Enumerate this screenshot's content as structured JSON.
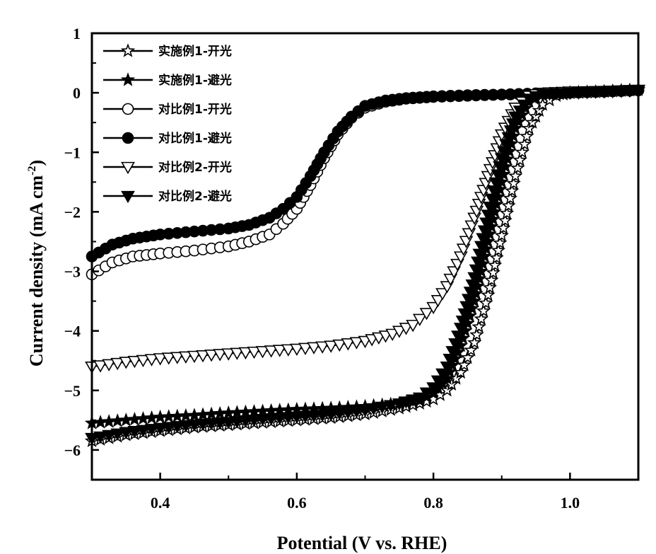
{
  "chart_data": {
    "type": "line",
    "title": "",
    "xlabel": "Potential (V vs. RHE)",
    "ylabel": "Current density (mA cm",
    "ylabel_sup": "-2",
    "ylabel_close": ")",
    "xlim": [
      0.3,
      1.1
    ],
    "ylim": [
      -6.5,
      1.0
    ],
    "xticks": [
      0.4,
      0.6,
      0.8,
      1.0
    ],
    "xtick_labels": [
      "0.4",
      "0.6",
      "0.8",
      "1.0"
    ],
    "yticks": [
      1,
      0,
      -1,
      -2,
      -3,
      -4,
      -5,
      -6
    ],
    "ytick_labels": [
      "1",
      "0",
      "−1",
      "−2",
      "−3",
      "−4",
      "−5",
      "−6"
    ],
    "grid": false,
    "legend_position": "top-left",
    "series": [
      {
        "name": "实施例1-开光",
        "marker": "star-open",
        "x": [
          0.3,
          0.35,
          0.4,
          0.45,
          0.5,
          0.55,
          0.6,
          0.65,
          0.7,
          0.75,
          0.78,
          0.8,
          0.82,
          0.84,
          0.86,
          0.88,
          0.9,
          0.92,
          0.94,
          0.96,
          0.98,
          1.0,
          1.05,
          1.1
        ],
        "y": [
          -5.85,
          -5.75,
          -5.68,
          -5.62,
          -5.58,
          -5.54,
          -5.5,
          -5.46,
          -5.4,
          -5.3,
          -5.22,
          -5.15,
          -5.0,
          -4.7,
          -4.2,
          -3.4,
          -2.4,
          -1.4,
          -0.6,
          -0.2,
          -0.05,
          0.0,
          0.02,
          0.05
        ]
      },
      {
        "name": "实施例1-避光",
        "marker": "star-filled",
        "x": [
          0.3,
          0.35,
          0.4,
          0.45,
          0.5,
          0.55,
          0.6,
          0.65,
          0.7,
          0.75,
          0.78,
          0.8,
          0.82,
          0.84,
          0.86,
          0.88,
          0.9,
          0.92,
          0.94,
          0.96,
          1.0,
          1.05,
          1.1
        ],
        "y": [
          -5.55,
          -5.5,
          -5.45,
          -5.42,
          -5.38,
          -5.35,
          -5.32,
          -5.3,
          -5.27,
          -5.22,
          -5.17,
          -5.05,
          -4.8,
          -4.25,
          -3.5,
          -2.5,
          -1.5,
          -0.6,
          -0.15,
          -0.03,
          0.0,
          0.02,
          0.05
        ]
      },
      {
        "name": "对比例1-开光",
        "marker": "circle-open",
        "x": [
          0.3,
          0.33,
          0.36,
          0.4,
          0.45,
          0.5,
          0.53,
          0.56,
          0.58,
          0.6,
          0.62,
          0.64,
          0.66,
          0.68,
          0.7,
          0.73,
          0.76,
          0.8,
          0.85,
          0.9,
          0.95,
          1.0,
          1.05,
          1.1
        ],
        "y": [
          -3.05,
          -2.85,
          -2.75,
          -2.7,
          -2.65,
          -2.58,
          -2.5,
          -2.38,
          -2.2,
          -1.95,
          -1.55,
          -1.1,
          -0.7,
          -0.42,
          -0.25,
          -0.15,
          -0.1,
          -0.07,
          -0.05,
          -0.03,
          -0.02,
          0.0,
          0.02,
          0.04
        ]
      },
      {
        "name": "对比例1-避光",
        "marker": "circle-filled",
        "x": [
          0.3,
          0.33,
          0.36,
          0.4,
          0.45,
          0.5,
          0.53,
          0.56,
          0.58,
          0.6,
          0.62,
          0.64,
          0.66,
          0.68,
          0.7,
          0.73,
          0.76,
          0.8,
          0.85,
          0.9,
          0.95,
          1.0,
          1.05,
          1.1
        ],
        "y": [
          -2.75,
          -2.55,
          -2.45,
          -2.38,
          -2.33,
          -2.28,
          -2.22,
          -2.1,
          -1.95,
          -1.75,
          -1.4,
          -1.0,
          -0.65,
          -0.4,
          -0.22,
          -0.13,
          -0.09,
          -0.06,
          -0.04,
          -0.03,
          -0.01,
          0.0,
          0.02,
          0.04
        ]
      },
      {
        "name": "对比例2-开光",
        "marker": "triangle-down-open",
        "x": [
          0.3,
          0.35,
          0.4,
          0.45,
          0.5,
          0.55,
          0.6,
          0.65,
          0.7,
          0.74,
          0.77,
          0.8,
          0.82,
          0.84,
          0.86,
          0.88,
          0.9,
          0.92,
          0.94,
          0.96,
          1.0,
          1.05,
          1.1
        ],
        "y": [
          -4.6,
          -4.52,
          -4.46,
          -4.42,
          -4.38,
          -4.34,
          -4.3,
          -4.25,
          -4.17,
          -4.05,
          -3.9,
          -3.6,
          -3.25,
          -2.75,
          -2.1,
          -1.4,
          -0.7,
          -0.25,
          -0.05,
          0.0,
          0.02,
          0.03,
          0.05
        ]
      },
      {
        "name": "对比例2-避光",
        "marker": "triangle-down-filled",
        "x": [
          0.3,
          0.35,
          0.4,
          0.45,
          0.5,
          0.55,
          0.6,
          0.65,
          0.7,
          0.75,
          0.78,
          0.8,
          0.82,
          0.84,
          0.86,
          0.88,
          0.9,
          0.92,
          0.94,
          0.96,
          1.0,
          1.05,
          1.1
        ],
        "y": [
          -5.8,
          -5.7,
          -5.63,
          -5.57,
          -5.53,
          -5.48,
          -5.44,
          -5.4,
          -5.33,
          -5.22,
          -5.12,
          -4.95,
          -4.6,
          -3.95,
          -3.1,
          -2.05,
          -1.1,
          -0.4,
          -0.1,
          -0.02,
          0.0,
          0.02,
          0.04
        ]
      }
    ]
  }
}
